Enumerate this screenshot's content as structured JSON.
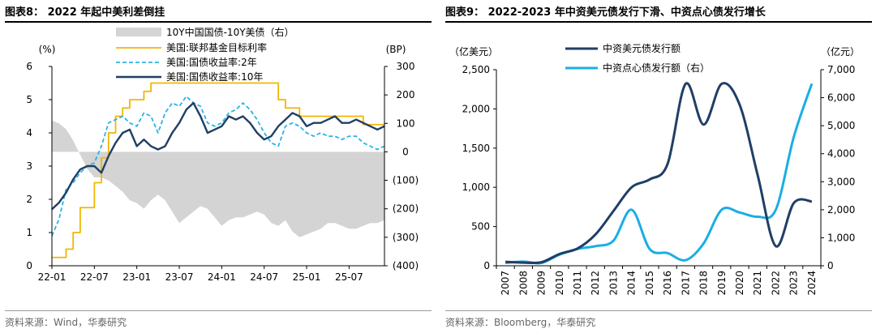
{
  "panels": [
    {
      "title": "图表8： 2022 年起中美利差倒挂",
      "source": "资料来源：Wind，华泰研究"
    },
    {
      "title": "图表9： 2022-2023 年中资美元债发行下滑、中资点心债发行增长",
      "source": "资料来源：Bloomberg，华泰研究"
    }
  ],
  "chart_data": [
    {
      "type": "line",
      "left_axis_label": "(%)",
      "right_axis_label": "(BP)",
      "x_tick_labels": [
        "22-01",
        "22-07",
        "23-01",
        "23-07",
        "24-01",
        "24-07",
        "25-01",
        "25-07"
      ],
      "x_range": [
        0,
        47
      ],
      "y_left_range": [
        0,
        6
      ],
      "y_left_ticks": [
        "0",
        "1",
        "2",
        "3",
        "4",
        "5",
        "6"
      ],
      "y_right_range": [
        -400,
        300
      ],
      "y_right_ticks": [
        "(400)",
        "(300)",
        "(200)",
        "(100)",
        "0",
        "100",
        "200",
        "300"
      ],
      "legend_position": "top-center",
      "series": [
        {
          "name": "10Y中国国债-10Y美债（右）",
          "kind": "area",
          "axis": "right",
          "color": "#d4d4d4",
          "x": [
            0,
            1,
            2,
            3,
            4,
            5,
            6,
            7,
            8,
            9,
            10,
            11,
            12,
            13,
            14,
            15,
            16,
            17,
            18,
            19,
            20,
            21,
            22,
            23,
            24,
            25,
            26,
            27,
            28,
            29,
            30,
            31,
            32,
            33,
            34,
            35,
            36,
            37,
            38,
            39,
            40,
            41,
            42,
            43,
            44,
            45,
            46,
            47
          ],
          "values": [
            110,
            100,
            80,
            40,
            -10,
            -60,
            -90,
            -90,
            -100,
            -120,
            -140,
            -170,
            -180,
            -200,
            -170,
            -150,
            -170,
            -210,
            -250,
            -230,
            -210,
            -190,
            -200,
            -230,
            -260,
            -240,
            -230,
            -230,
            -220,
            -210,
            -220,
            -250,
            -260,
            -240,
            -280,
            -300,
            -290,
            -280,
            -270,
            -250,
            -250,
            -260,
            -270,
            -270,
            -260,
            -250,
            -250,
            -240
          ]
        },
        {
          "name": "美国:联邦基金目标利率",
          "kind": "step",
          "axis": "left",
          "color": "#f2b600",
          "x": [
            0,
            2,
            2,
            3,
            3,
            4,
            4,
            6,
            6,
            7,
            7,
            8,
            8,
            9,
            9,
            10,
            10,
            11,
            11,
            13,
            13,
            14,
            14,
            16,
            16,
            18,
            18,
            32,
            32,
            33,
            33,
            35,
            35,
            44,
            44,
            45,
            45,
            47
          ],
          "values": [
            0.25,
            0.25,
            0.5,
            0.5,
            1.0,
            1.0,
            1.75,
            1.75,
            2.5,
            2.5,
            3.25,
            3.25,
            4.0,
            4.0,
            4.5,
            4.5,
            4.75,
            4.75,
            5.0,
            5.0,
            5.25,
            5.25,
            5.5,
            5.5,
            5.5,
            5.5,
            5.5,
            5.5,
            5.0,
            5.0,
            4.75,
            4.75,
            4.5,
            4.5,
            4.25,
            4.25,
            4.25,
            4.25
          ]
        },
        {
          "name": "美国:国债收益率:2年",
          "kind": "line",
          "axis": "left",
          "color": "#2bb3e6",
          "x": [
            0,
            1,
            2,
            3,
            4,
            5,
            6,
            7,
            8,
            9,
            10,
            11,
            12,
            13,
            14,
            15,
            16,
            17,
            18,
            19,
            20,
            21,
            22,
            23,
            24,
            25,
            26,
            27,
            28,
            29,
            30,
            31,
            32,
            33,
            34,
            35,
            36,
            37,
            38,
            39,
            40,
            41,
            42,
            43,
            44,
            45,
            46,
            47
          ],
          "values": [
            0.9,
            1.4,
            2.3,
            2.5,
            2.8,
            3.0,
            3.1,
            3.6,
            4.3,
            4.4,
            4.5,
            4.3,
            4.2,
            4.6,
            4.5,
            4.0,
            4.6,
            4.9,
            4.8,
            5.1,
            4.9,
            4.8,
            4.3,
            4.2,
            4.3,
            4.6,
            4.7,
            4.9,
            4.7,
            4.4,
            4.0,
            3.7,
            3.6,
            4.2,
            4.3,
            4.2,
            4.0,
            3.9,
            4.0,
            3.9,
            3.9,
            3.8,
            3.9,
            3.9,
            3.7,
            3.6,
            3.5,
            3.6
          ]
        },
        {
          "name": "美国:国债收益率:10年",
          "kind": "line",
          "axis": "left",
          "color": "#1f3f66",
          "x": [
            0,
            1,
            2,
            3,
            4,
            5,
            6,
            7,
            8,
            9,
            10,
            11,
            12,
            13,
            14,
            15,
            16,
            17,
            18,
            19,
            20,
            21,
            22,
            23,
            24,
            25,
            26,
            27,
            28,
            29,
            30,
            31,
            32,
            33,
            34,
            35,
            36,
            37,
            38,
            39,
            40,
            41,
            42,
            43,
            44,
            45,
            46,
            47
          ],
          "values": [
            1.7,
            1.9,
            2.2,
            2.6,
            2.9,
            3.0,
            3.0,
            2.8,
            3.3,
            3.7,
            4.0,
            4.1,
            3.6,
            3.8,
            3.6,
            3.5,
            3.6,
            4.0,
            4.3,
            4.7,
            4.9,
            4.5,
            4.0,
            4.1,
            4.2,
            4.5,
            4.4,
            4.5,
            4.3,
            4.0,
            3.8,
            3.9,
            4.2,
            4.4,
            4.6,
            4.5,
            4.2,
            4.3,
            4.3,
            4.4,
            4.5,
            4.3,
            4.3,
            4.4,
            4.3,
            4.2,
            4.1,
            4.2
          ]
        }
      ]
    },
    {
      "type": "line",
      "left_axis_label": "（亿美元）",
      "right_axis_label": "（亿元）",
      "categories": [
        "2007",
        "2008",
        "2009",
        "2010",
        "2011",
        "2012",
        "2013",
        "2014",
        "2015",
        "2016",
        "2017",
        "2018",
        "2019",
        "2020",
        "2021",
        "2022",
        "2023",
        "2024"
      ],
      "y_left_range": [
        0,
        2500
      ],
      "y_left_ticks": [
        "0",
        "500",
        "1,000",
        "1,500",
        "2,000",
        "2,500"
      ],
      "y_right_range": [
        0,
        7000
      ],
      "y_right_ticks": [
        "0",
        "1,000",
        "2,000",
        "3,000",
        "4,000",
        "5,000",
        "6,000",
        "7,000"
      ],
      "legend_position": "top-center",
      "series": [
        {
          "name": "中资美元债发行额",
          "axis": "left",
          "color": "#1f3f66",
          "values": [
            50,
            40,
            45,
            150,
            220,
            400,
            700,
            1000,
            1100,
            1300,
            2320,
            1800,
            2320,
            2050,
            1150,
            250,
            800,
            820
          ]
        },
        {
          "name": "中资点心债发行额（右）",
          "axis": "right",
          "color": "#1aaee5",
          "values": [
            100,
            150,
            100,
            400,
            600,
            700,
            900,
            2000,
            600,
            450,
            200,
            800,
            2000,
            1900,
            1750,
            2000,
            4600,
            6500
          ]
        }
      ]
    }
  ]
}
